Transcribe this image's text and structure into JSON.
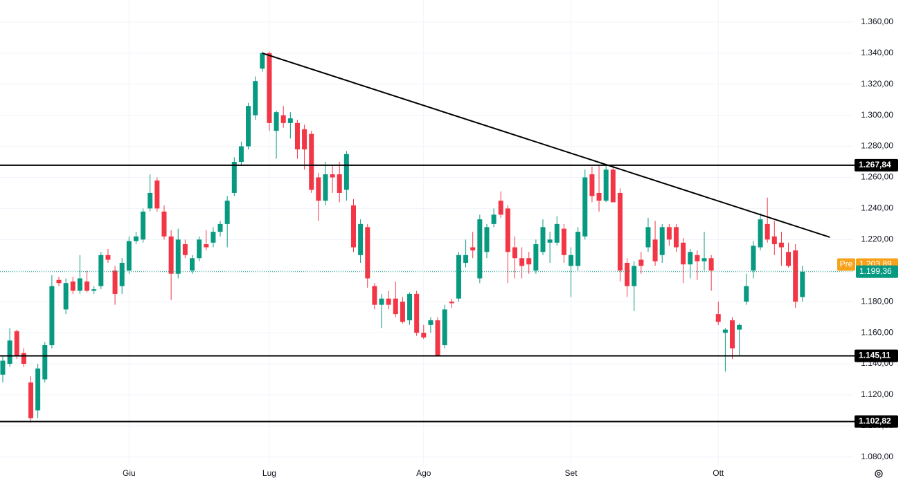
{
  "chart_data": {
    "type": "candlestick",
    "categories": [
      null,
      null,
      null,
      null,
      null,
      null,
      null,
      null,
      null,
      null,
      null,
      null,
      null,
      null,
      null,
      null,
      null,
      null,
      "Giu",
      null,
      null,
      null,
      null,
      null,
      null,
      null,
      null,
      null,
      null,
      null,
      null,
      null,
      null,
      null,
      null,
      null,
      null,
      null,
      "Lug",
      null,
      null,
      null,
      null,
      null,
      null,
      null,
      null,
      null,
      null,
      null,
      null,
      null,
      null,
      null,
      null,
      null,
      null,
      null,
      null,
      null,
      "Ago",
      null,
      null,
      null,
      null,
      null,
      null,
      null,
      null,
      null,
      null,
      null,
      null,
      null,
      null,
      null,
      null,
      null,
      null,
      null,
      null,
      "Set",
      null,
      null,
      null,
      null,
      null,
      null,
      null,
      null,
      null,
      null,
      null,
      null,
      null,
      null,
      null,
      null,
      null,
      null,
      null,
      null,
      "Ott",
      null,
      null,
      null,
      null,
      null,
      null,
      null,
      null,
      null,
      null,
      null,
      null
    ],
    "up_color": "#089981",
    "down_color": "#f23645",
    "ohlc": [
      [
        1133,
        1145,
        1128,
        1142
      ],
      [
        1140,
        1163,
        1138,
        1155
      ],
      [
        1161,
        1162,
        1143,
        1145
      ],
      [
        1147,
        1150,
        1138,
        1140
      ],
      [
        1128,
        1132,
        1102,
        1105
      ],
      [
        1110,
        1140,
        1105,
        1137
      ],
      [
        1130,
        1154,
        1128,
        1152
      ],
      [
        1152,
        1197,
        1150,
        1190
      ],
      [
        1194,
        1196,
        1190,
        1192
      ],
      [
        1175,
        1195,
        1172,
        1192
      ],
      [
        1193,
        1196,
        1185,
        1187
      ],
      [
        1187,
        1210,
        1185,
        1195
      ],
      [
        1193,
        1200,
        1186,
        1187
      ],
      [
        1187,
        1190,
        1185,
        1188
      ],
      [
        1190,
        1212,
        1188,
        1210
      ],
      [
        1210,
        1214,
        1205,
        1207
      ],
      [
        1200,
        1203,
        1178,
        1185
      ],
      [
        1190,
        1208,
        1185,
        1205
      ],
      [
        1200,
        1222,
        1198,
        1219
      ],
      [
        1219,
        1225,
        1217,
        1222
      ],
      [
        1220,
        1240,
        1218,
        1238
      ],
      [
        1240,
        1262,
        1238,
        1250
      ],
      [
        1258,
        1260,
        1238,
        1240
      ],
      [
        1238,
        1242,
        1220,
        1222
      ],
      [
        1222,
        1226,
        1181,
        1198
      ],
      [
        1198,
        1227,
        1195,
        1220
      ],
      [
        1217,
        1220,
        1208,
        1210
      ],
      [
        1200,
        1210,
        1198,
        1208
      ],
      [
        1208,
        1222,
        1206,
        1220
      ],
      [
        1217,
        1226,
        1213,
        1215
      ],
      [
        1218,
        1228,
        1215,
        1225
      ],
      [
        1225,
        1232,
        1222,
        1230
      ],
      [
        1230,
        1248,
        1215,
        1245
      ],
      [
        1250,
        1273,
        1248,
        1270
      ],
      [
        1270,
        1283,
        1268,
        1280
      ],
      [
        1280,
        1308,
        1278,
        1306
      ],
      [
        1300,
        1325,
        1297,
        1322
      ],
      [
        1330,
        1341,
        1328,
        1340
      ],
      [
        1340,
        1341,
        1290,
        1295
      ],
      [
        1290,
        1303,
        1272,
        1302
      ],
      [
        1300,
        1306,
        1292,
        1295
      ],
      [
        1295,
        1302,
        1285,
        1298
      ],
      [
        1295,
        1297,
        1272,
        1278
      ],
      [
        1291,
        1294,
        1265,
        1278
      ],
      [
        1288,
        1290,
        1250,
        1252
      ],
      [
        1260,
        1263,
        1232,
        1245
      ],
      [
        1245,
        1270,
        1242,
        1262
      ],
      [
        1262,
        1268,
        1250,
        1260
      ],
      [
        1262,
        1270,
        1244,
        1250
      ],
      [
        1252,
        1277,
        1245,
        1275
      ],
      [
        1242,
        1246,
        1212,
        1215
      ],
      [
        1210,
        1233,
        1205,
        1230
      ],
      [
        1228,
        1230,
        1189,
        1195
      ],
      [
        1190,
        1192,
        1175,
        1178
      ],
      [
        1178,
        1185,
        1163,
        1182
      ],
      [
        1182,
        1187,
        1175,
        1178
      ],
      [
        1182,
        1193,
        1170,
        1172
      ],
      [
        1180,
        1183,
        1166,
        1167
      ],
      [
        1168,
        1186,
        1165,
        1185
      ],
      [
        1185,
        1187,
        1158,
        1160
      ],
      [
        1160,
        1165,
        1156,
        1157
      ],
      [
        1165,
        1170,
        1160,
        1168
      ],
      [
        1168,
        1170,
        1145,
        1145
      ],
      [
        1152,
        1178,
        1150,
        1175
      ],
      [
        1180,
        1182,
        1176,
        1179
      ],
      [
        1182,
        1212,
        1180,
        1210
      ],
      [
        1205,
        1220,
        1202,
        1210
      ],
      [
        1215,
        1225,
        1208,
        1213
      ],
      [
        1195,
        1236,
        1192,
        1233
      ],
      [
        1212,
        1230,
        1208,
        1228
      ],
      [
        1230,
        1240,
        1228,
        1236
      ],
      [
        1245,
        1251,
        1234,
        1236
      ],
      [
        1240,
        1242,
        1192,
        1212
      ],
      [
        1215,
        1222,
        1195,
        1208
      ],
      [
        1208,
        1215,
        1195,
        1203
      ],
      [
        1208,
        1212,
        1198,
        1204
      ],
      [
        1200,
        1220,
        1198,
        1217
      ],
      [
        1212,
        1233,
        1210,
        1228
      ],
      [
        1218,
        1225,
        1205,
        1220
      ],
      [
        1218,
        1235,
        1216,
        1230
      ],
      [
        1227,
        1230,
        1205,
        1210
      ],
      [
        1203,
        1215,
        1183,
        1210
      ],
      [
        1203,
        1228,
        1200,
        1225
      ],
      [
        1222,
        1265,
        1220,
        1260
      ],
      [
        1262,
        1267,
        1244,
        1248
      ],
      [
        1250,
        1268,
        1238,
        1245
      ],
      [
        1245,
        1268,
        1244,
        1265
      ],
      [
        1265,
        1268,
        1244,
        1244
      ],
      [
        1250,
        1253,
        1193,
        1200
      ],
      [
        1205,
        1208,
        1183,
        1190
      ],
      [
        1190,
        1206,
        1174,
        1203
      ],
      [
        1207,
        1212,
        1198,
        1203
      ],
      [
        1215,
        1234,
        1212,
        1228
      ],
      [
        1220,
        1232,
        1203,
        1206
      ],
      [
        1210,
        1230,
        1205,
        1228
      ],
      [
        1228,
        1230,
        1216,
        1220
      ],
      [
        1228,
        1230,
        1212,
        1215
      ],
      [
        1218,
        1221,
        1192,
        1204
      ],
      [
        1204,
        1214,
        1195,
        1212
      ],
      [
        1210,
        1213,
        1194,
        1206
      ],
      [
        1206,
        1225,
        1200,
        1208
      ],
      [
        1208,
        1210,
        1187,
        1200
      ],
      [
        1172,
        1180,
        1165,
        1167
      ],
      [
        1160,
        1163,
        1135,
        1162
      ],
      [
        1168,
        1170,
        1143,
        1150
      ],
      [
        1162,
        1166,
        1145,
        1165
      ],
      [
        1180,
        1198,
        1178,
        1190
      ],
      [
        1200,
        1219,
        1195,
        1216
      ],
      [
        1215,
        1237,
        1213,
        1233
      ],
      [
        1230,
        1247,
        1218,
        1220
      ],
      [
        1222,
        1232,
        1210,
        1217
      ],
      [
        1218,
        1225,
        1203,
        1215
      ],
      [
        1212,
        1218,
        1202,
        1203
      ],
      [
        1213,
        1217,
        1176,
        1180
      ],
      [
        1183,
        1203,
        1180,
        1199.36
      ]
    ],
    "ylim": [
      1075,
      1374.2
    ],
    "yticks": [
      {
        "value": 1080,
        "label": "1.080,00"
      },
      {
        "value": 1100,
        "label": "1.100,00"
      },
      {
        "value": 1120,
        "label": "1.120,00"
      },
      {
        "value": 1140,
        "label": "1.140,00"
      },
      {
        "value": 1160,
        "label": "1.160,00"
      },
      {
        "value": 1180,
        "label": "1.180,00"
      },
      {
        "value": 1200,
        "label": "1.200,00"
      },
      {
        "value": 1220,
        "label": "1.220,00"
      },
      {
        "value": 1240,
        "label": "1.240,00"
      },
      {
        "value": 1260,
        "label": "1.260,00"
      },
      {
        "value": 1280,
        "label": "1.280,00"
      },
      {
        "value": 1300,
        "label": "1.300,00"
      },
      {
        "value": 1320,
        "label": "1.320,00"
      },
      {
        "value": 1340,
        "label": "1.340,00"
      },
      {
        "value": 1360,
        "label": "1.360,00"
      }
    ],
    "grid": true,
    "levels": [
      {
        "value": 1267.84,
        "label": "1.267,84"
      },
      {
        "value": 1145.11,
        "label": "1.145,11"
      },
      {
        "value": 1102.82,
        "label": "1.102,82"
      }
    ],
    "trendline": {
      "from": [
        37,
        1340
      ],
      "to": [
        117.9,
        1221.5
      ]
    },
    "price_tags": [
      {
        "name": "Pre",
        "value": 1203.89,
        "label": "1.203,89",
        "color": "#f7a21b"
      },
      {
        "value": 1199.36,
        "label": "1.199,36",
        "color": "#089981"
      }
    ]
  }
}
